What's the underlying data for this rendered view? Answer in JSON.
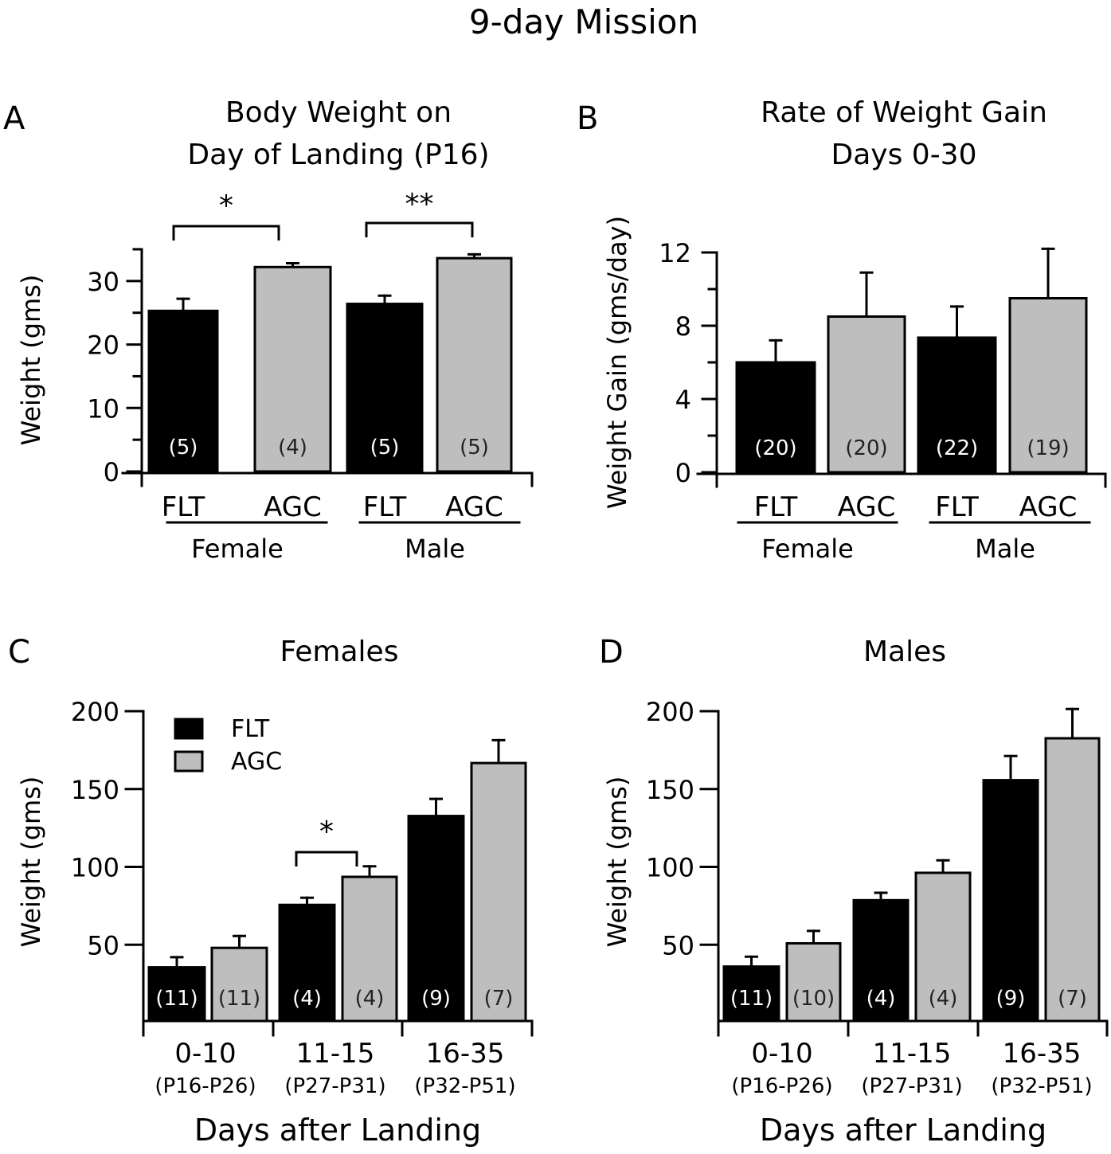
{
  "figure_title": "9-day Mission",
  "colors": {
    "FLT": "#000000",
    "AGC": "#bebebe",
    "axis": "#000000"
  },
  "chart_data": [
    {
      "panel": "A",
      "type": "bar",
      "title": "Body Weight on Day of Landing (P16)",
      "title_lines": [
        "Body Weight on",
        "Day of Landing (P16)"
      ],
      "ylabel": "Weight (gms)",
      "xlabel": "",
      "ylim": [
        0,
        35
      ],
      "yticks": [
        0,
        10,
        20,
        30
      ],
      "yticks_minor": [
        5,
        15,
        25,
        35
      ],
      "groups": [
        "Female",
        "Male"
      ],
      "categories": [
        "FLT",
        "AGC",
        "FLT",
        "AGC"
      ],
      "bars": [
        {
          "group": "Female",
          "series": "FLT",
          "value": 25.3,
          "error": 1.9,
          "n_label": "(5)"
        },
        {
          "group": "Female",
          "series": "AGC",
          "value": 32.2,
          "error": 0.6,
          "n_label": "(4)"
        },
        {
          "group": "Male",
          "series": "FLT",
          "value": 26.4,
          "error": 1.3,
          "n_label": "(5)"
        },
        {
          "group": "Male",
          "series": "AGC",
          "value": 33.6,
          "error": 0.6,
          "n_label": "(5)"
        }
      ],
      "significance": [
        {
          "between": [
            0,
            1
          ],
          "label": "*"
        },
        {
          "between": [
            2,
            3
          ],
          "label": "**"
        }
      ],
      "grid": false
    },
    {
      "panel": "B",
      "type": "bar",
      "title": "Rate of Weight Gain Days 0-30",
      "title_lines": [
        "Rate of Weight Gain",
        "Days 0-30"
      ],
      "ylabel": "Weight Gain (gms/day)",
      "xlabel": "",
      "ylim": [
        0,
        12
      ],
      "yticks": [
        0,
        4,
        8,
        12
      ],
      "yticks_minor": [
        2,
        6,
        10
      ],
      "groups": [
        "Female",
        "Male"
      ],
      "categories": [
        "FLT",
        "AGC",
        "FLT",
        "AGC"
      ],
      "bars": [
        {
          "group": "Female",
          "series": "FLT",
          "value": 6.0,
          "error": 1.2,
          "n_label": "(20)"
        },
        {
          "group": "Female",
          "series": "AGC",
          "value": 8.5,
          "error": 2.4,
          "n_label": "(20)"
        },
        {
          "group": "Male",
          "series": "FLT",
          "value": 7.35,
          "error": 1.7,
          "n_label": "(22)"
        },
        {
          "group": "Male",
          "series": "AGC",
          "value": 9.5,
          "error": 2.7,
          "n_label": "(19)"
        }
      ],
      "significance": [],
      "grid": false
    },
    {
      "panel": "C",
      "type": "bar",
      "title": "Females",
      "title_lines": [
        "Females"
      ],
      "ylabel": "Weight (gms)",
      "xlabel": "Days after Landing",
      "ylim": [
        0,
        200
      ],
      "yticks": [
        50,
        100,
        150,
        200
      ],
      "categories": [
        "0-10",
        "11-15",
        "16-35"
      ],
      "category_sublabels": [
        "(P16-P26)",
        "(P27-P31)",
        "(P32-P51)"
      ],
      "legend": {
        "entries": [
          "FLT",
          "AGC"
        ],
        "placement": "top-left"
      },
      "series": [
        {
          "name": "FLT",
          "values": [
            35.5,
            75.6,
            132.7
          ],
          "errors": [
            6.5,
            4.6,
            11.0
          ],
          "n_labels": [
            "(11)",
            "(4)",
            "(9)"
          ]
        },
        {
          "name": "AGC",
          "values": [
            48.0,
            93.6,
            166.7
          ],
          "errors": [
            7.6,
            6.8,
            14.7
          ],
          "n_labels": [
            "(11)",
            "(4)",
            "(7)"
          ]
        }
      ],
      "significance": [
        {
          "category": "11-15",
          "label": "*"
        }
      ],
      "grid": false
    },
    {
      "panel": "D",
      "type": "bar",
      "title": "Males",
      "title_lines": [
        "Males"
      ],
      "ylabel": "Weight (gms)",
      "xlabel": "Days after Landing",
      "ylim": [
        0,
        200
      ],
      "yticks": [
        50,
        100,
        150,
        200
      ],
      "categories": [
        "0-10",
        "11-15",
        "16-35"
      ],
      "category_sublabels": [
        "(P16-P26)",
        "(P27-P31)",
        "(P32-P51)"
      ],
      "series": [
        {
          "name": "FLT",
          "values": [
            36.0,
            78.6,
            155.7
          ],
          "errors": [
            6.3,
            4.8,
            15.5
          ],
          "n_labels": [
            "(11)",
            "(4)",
            "(9)"
          ]
        },
        {
          "name": "AGC",
          "values": [
            50.9,
            96.2,
            182.6
          ],
          "errors": [
            8.0,
            8.0,
            18.8
          ],
          "n_labels": [
            "(10)",
            "(4)",
            "(7)"
          ]
        }
      ],
      "significance": [],
      "grid": false
    }
  ]
}
